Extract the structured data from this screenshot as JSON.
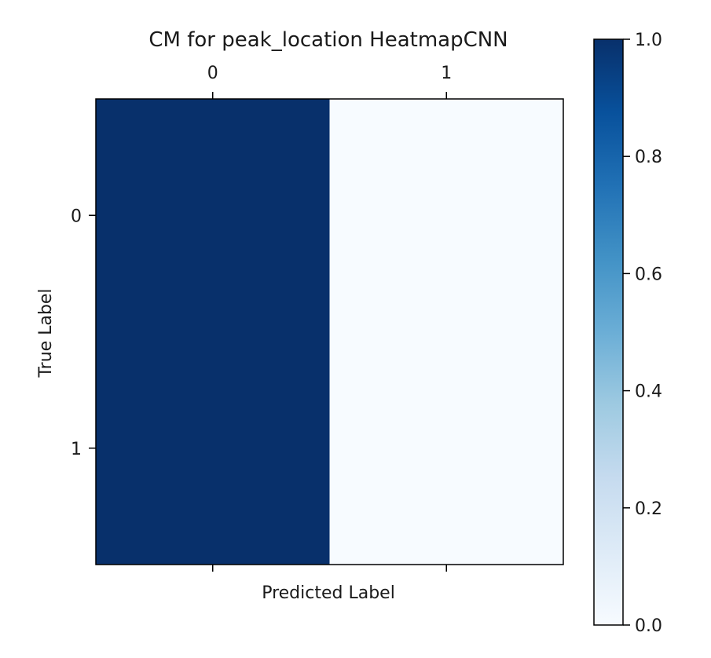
{
  "chart_data": {
    "type": "heatmap",
    "title": "CM for peak_location HeatmapCNN",
    "xlabel": "Predicted Label",
    "ylabel": "True Label",
    "x_categories": [
      "0",
      "1"
    ],
    "y_categories": [
      "0",
      "1"
    ],
    "values": [
      [
        1.0,
        0.0
      ],
      [
        1.0,
        0.0
      ]
    ],
    "colormap": "Blues",
    "colorbar": {
      "range": [
        0.0,
        1.0
      ],
      "ticks": [
        0.0,
        0.2,
        0.4,
        0.6,
        0.8,
        1.0
      ],
      "tick_labels": [
        "0.0",
        "0.2",
        "0.4",
        "0.6",
        "0.8",
        "1.0"
      ],
      "placement": "right"
    },
    "x_axis_position": "top",
    "grid": false,
    "colors": {
      "low": "#f7fbff",
      "high": "#08306b"
    }
  }
}
